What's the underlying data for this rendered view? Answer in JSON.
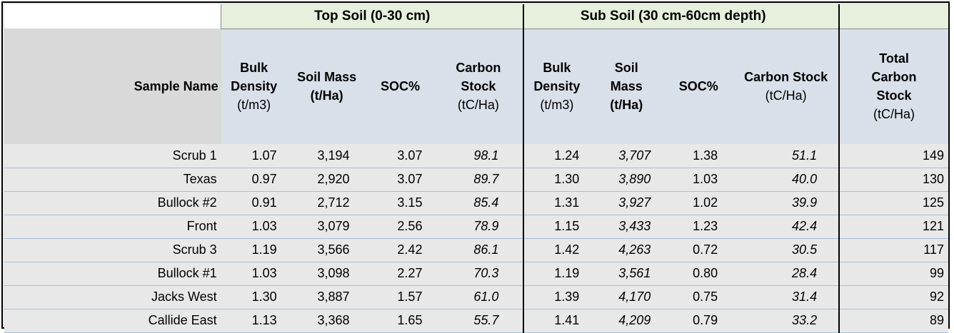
{
  "groups": {
    "top_soil": "Top Soil (0-30 cm)",
    "sub_soil": "Sub Soil (30 cm-60cm depth)"
  },
  "headers": {
    "sample_name": "Sample Name",
    "top_bulk_density": {
      "title1": "Bulk",
      "title2": "Density",
      "unit": "(t/m3)"
    },
    "top_soil_mass": {
      "title1": "Soil Mass",
      "unit": "(t/Ha)"
    },
    "top_soc": {
      "title": "SOC%"
    },
    "top_carbon_stock": {
      "title1": "Carbon",
      "title2": "Stock",
      "unit": "(tC/Ha)"
    },
    "sub_bulk_density": {
      "title1": "Bulk",
      "title2": "Density",
      "unit": "(t/m3)"
    },
    "sub_soil_mass": {
      "title1": "Soil",
      "title2": "Mass",
      "unit": "(t/Ha)"
    },
    "sub_soc": {
      "title": "SOC%"
    },
    "sub_carbon_stock": {
      "title": "Carbon Stock",
      "unit": "(tC/Ha)"
    },
    "total": {
      "title1": "Total",
      "title2": "Carbon",
      "title3": "Stock",
      "unit": "(tC/Ha)"
    }
  },
  "rows": [
    {
      "name": "Scrub 1",
      "tbd": "1.07",
      "tsm": "3,194",
      "tsoc": "3.07",
      "tcs": "98.1",
      "sbd": "1.24",
      "ssm": "3,707",
      "ssoc": "1.38",
      "scs": "51.1",
      "total": "149"
    },
    {
      "name": "Texas",
      "tbd": "0.97",
      "tsm": "2,920",
      "tsoc": "3.07",
      "tcs": "89.7",
      "sbd": "1.30",
      "ssm": "3,890",
      "ssoc": "1.03",
      "scs": "40.0",
      "total": "130"
    },
    {
      "name": "Bullock #2",
      "tbd": "0.91",
      "tsm": "2,712",
      "tsoc": "3.15",
      "tcs": "85.4",
      "sbd": "1.31",
      "ssm": "3,927",
      "ssoc": "1.02",
      "scs": "39.9",
      "total": "125"
    },
    {
      "name": "Front",
      "tbd": "1.03",
      "tsm": "3,079",
      "tsoc": "2.56",
      "tcs": "78.9",
      "sbd": "1.15",
      "ssm": "3,433",
      "ssoc": "1.23",
      "scs": "42.4",
      "total": "121"
    },
    {
      "name": "Scrub 3",
      "tbd": "1.19",
      "tsm": "3,566",
      "tsoc": "2.42",
      "tcs": "86.1",
      "sbd": "1.42",
      "ssm": "4,263",
      "ssoc": "0.72",
      "scs": "30.5",
      "total": "117"
    },
    {
      "name": "Bullock #1",
      "tbd": "1.03",
      "tsm": "3,098",
      "tsoc": "2.27",
      "tcs": "70.3",
      "sbd": "1.19",
      "ssm": "3,561",
      "ssoc": "0.80",
      "scs": "28.4",
      "total": "99"
    },
    {
      "name": "Jacks West",
      "tbd": "1.30",
      "tsm": "3,887",
      "tsoc": "1.57",
      "tcs": "61.0",
      "sbd": "1.39",
      "ssm": "4,170",
      "ssoc": "0.75",
      "scs": "31.4",
      "total": "92"
    },
    {
      "name": "Callide East",
      "tbd": "1.13",
      "tsm": "3,368",
      "tsoc": "1.65",
      "tcs": "55.7",
      "sbd": "1.41",
      "ssm": "4,209",
      "ssoc": "0.79",
      "scs": "33.2",
      "total": "89"
    }
  ]
}
